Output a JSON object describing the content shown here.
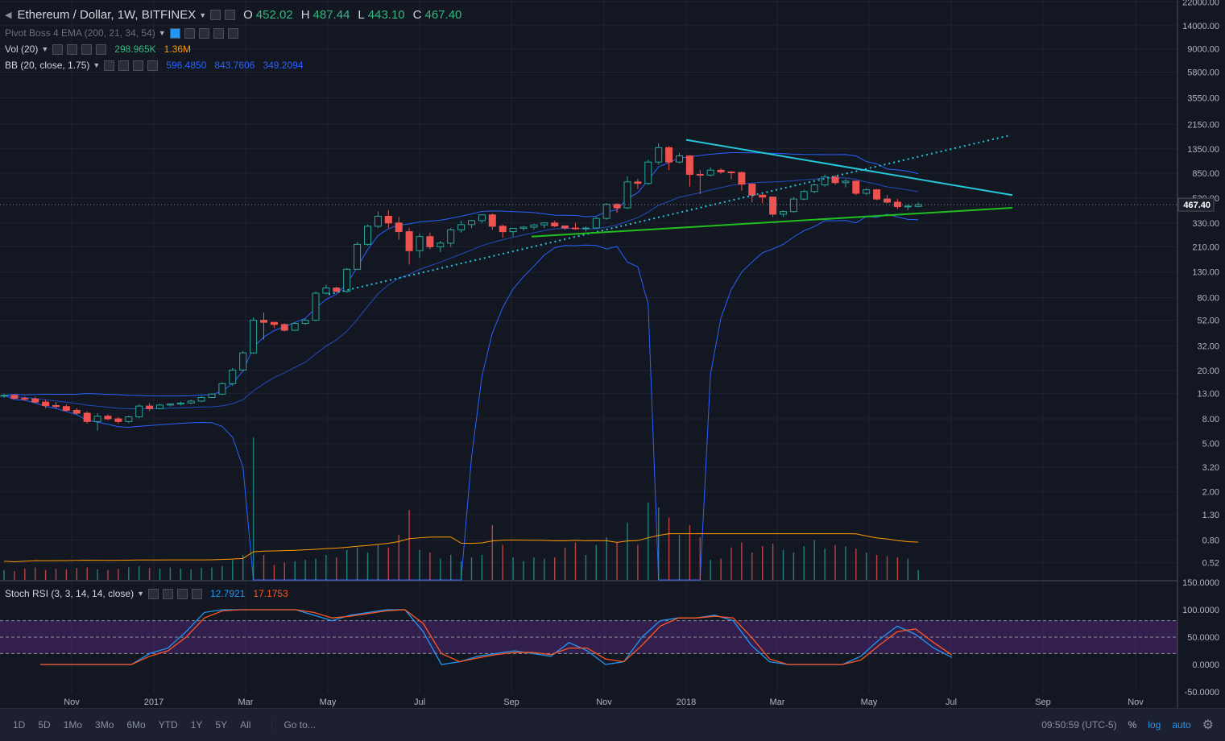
{
  "header": {
    "symbol": "Ethereum / Dollar, 1W, BITFINEX",
    "open_label": "O",
    "open": "452.02",
    "high_label": "H",
    "high": "487.44",
    "low_label": "L",
    "low": "443.10",
    "close_label": "C",
    "close": "467.40"
  },
  "indicators": {
    "pivot": {
      "label": "Pivot Boss 4 EMA (200, 21, 34, 54)"
    },
    "vol": {
      "label": "Vol (20)",
      "v1": "298.965K",
      "v2": "1.36M"
    },
    "bb": {
      "label": "BB (20, close, 1.75)",
      "basis": "596.4850",
      "upper": "843.7606",
      "lower": "349.2094"
    },
    "stoch": {
      "label": "Stoch RSI (3, 3, 14, 14, close)",
      "k": "12.7921",
      "d": "17.1753"
    }
  },
  "bottom_bar": {
    "timeframes": [
      "1D",
      "5D",
      "1Mo",
      "3Mo",
      "6Mo",
      "YTD",
      "1Y",
      "5Y",
      "All"
    ],
    "goto": "Go to...",
    "clock": "09:50:59 (UTC-5)",
    "percent": "%",
    "log": "log",
    "auto": "auto"
  },
  "colors": {
    "up": "#26a69a",
    "down": "#ef5350",
    "bb": "#2962ff",
    "vol_ma": "#ff9800",
    "trend_cyan": "#26c6da",
    "trend_green": "#1fbf1f",
    "stoch_k": "#2196f3",
    "stoch_d": "#ff5722",
    "rsi_band": "#5b2a86"
  },
  "chart_data": [
    {
      "type": "candlestick",
      "title": "Ethereum / Dollar, 1W, BITFINEX",
      "yscale": "log",
      "price_ticks": [
        22000,
        14000,
        9000,
        5800,
        3550,
        2150,
        1350,
        850,
        530,
        330,
        210,
        130,
        80,
        52,
        32,
        20,
        13,
        8,
        5,
        3.2,
        2,
        1.3,
        0.8,
        0.52
      ],
      "price_tick_labels": [
        "22000.00",
        "14000.00",
        "9000.00",
        "5800.00",
        "3550.00",
        "2150.00",
        "1350.00",
        "850.00",
        "530.00",
        "330.00",
        "210.00",
        "130.00",
        "80.00",
        "52.00",
        "32.00",
        "20.00",
        "13.00",
        "8.00",
        "5.00",
        "3.20",
        "2.00",
        "1.30",
        "0.80",
        "0.52"
      ],
      "last_price_label": "467.40",
      "time_labels": [
        "Nov",
        "2017",
        "Mar",
        "May",
        "Jul",
        "Sep",
        "Nov",
        "2018",
        "Mar",
        "May",
        "Jul",
        "Sep",
        "Nov"
      ],
      "candles": [
        [
          12.3,
          12.9,
          11.9,
          12.5
        ],
        [
          12.5,
          12.8,
          11.6,
          11.8
        ],
        [
          11.8,
          12.2,
          11.3,
          11.7
        ],
        [
          11.7,
          12.2,
          10.8,
          11.0
        ],
        [
          11.0,
          11.5,
          9.8,
          10.3
        ],
        [
          10.3,
          11.0,
          9.7,
          10.1
        ],
        [
          10.1,
          10.5,
          9.2,
          9.4
        ],
        [
          9.4,
          9.8,
          8.7,
          8.9
        ],
        [
          8.9,
          9.2,
          7.3,
          7.6
        ],
        [
          7.6,
          8.9,
          6.4,
          8.4
        ],
        [
          8.4,
          8.7,
          7.8,
          8.0
        ],
        [
          8.0,
          8.3,
          7.3,
          7.6
        ],
        [
          7.6,
          8.5,
          7.4,
          8.3
        ],
        [
          8.3,
          10.5,
          8.1,
          10.2
        ],
        [
          10.2,
          10.8,
          9.3,
          9.7
        ],
        [
          9.7,
          10.6,
          9.6,
          10.4
        ],
        [
          10.4,
          10.7,
          10.1,
          10.6
        ],
        [
          10.6,
          11.1,
          10.3,
          10.8
        ],
        [
          10.8,
          11.5,
          10.6,
          11.2
        ],
        [
          11.2,
          12.3,
          11.0,
          12.0
        ],
        [
          12.0,
          13.0,
          11.9,
          12.8
        ],
        [
          12.8,
          16.0,
          12.6,
          15.6
        ],
        [
          15.6,
          21.0,
          15.0,
          20.2
        ],
        [
          20.2,
          29.0,
          19.8,
          28.0
        ],
        [
          28.0,
          55.0,
          27.5,
          52.0
        ],
        [
          52.0,
          60.0,
          36.0,
          50.0
        ],
        [
          50.0,
          50.5,
          45.0,
          48.0
        ],
        [
          48.0,
          49.0,
          42.0,
          43.0
        ],
        [
          43.0,
          50.0,
          42.5,
          49.0
        ],
        [
          49.0,
          53.5,
          47.5,
          52.0
        ],
        [
          52.0,
          90.0,
          51.0,
          87.0
        ],
        [
          87.0,
          102.0,
          85.0,
          96.0
        ],
        [
          96.0,
          98.0,
          88.0,
          90.0
        ],
        [
          90.0,
          140.0,
          88.0,
          137.0
        ],
        [
          137.0,
          230.0,
          135.0,
          220.0
        ],
        [
          220.0,
          320.0,
          215.0,
          310.0
        ],
        [
          310.0,
          410.0,
          300.0,
          375.0
        ],
        [
          375.0,
          420.0,
          300.0,
          330.0
        ],
        [
          330.0,
          370.0,
          240.0,
          280.0
        ],
        [
          280.0,
          300.0,
          150.0,
          195.0
        ],
        [
          195.0,
          270.0,
          170.0,
          255.0
        ],
        [
          255.0,
          275.0,
          200.0,
          210.0
        ],
        [
          210.0,
          235.0,
          190.0,
          225.0
        ],
        [
          225.0,
          300.0,
          210.0,
          290.0
        ],
        [
          290.0,
          345.0,
          275.0,
          320.0
        ],
        [
          320.0,
          350.0,
          300.0,
          345.0
        ],
        [
          345.0,
          390.0,
          330.0,
          385.0
        ],
        [
          385.0,
          395.0,
          290.0,
          310.0
        ],
        [
          310.0,
          320.0,
          250.0,
          280.0
        ],
        [
          280.0,
          300.0,
          255.0,
          298.0
        ],
        [
          298.0,
          312.0,
          285.0,
          305.0
        ],
        [
          305.0,
          325.0,
          290.0,
          318.0
        ],
        [
          318.0,
          335.0,
          300.0,
          330.0
        ],
        [
          330.0,
          345.0,
          305.0,
          312.0
        ],
        [
          312.0,
          315.0,
          290.0,
          300.0
        ],
        [
          300.0,
          330.0,
          290.0,
          296.0
        ],
        [
          296.0,
          310.0,
          280.0,
          300.0
        ],
        [
          300.0,
          370.0,
          295.0,
          360.0
        ],
        [
          360.0,
          480.0,
          350.0,
          470.0
        ],
        [
          470.0,
          480.0,
          400.0,
          440.0
        ],
        [
          440.0,
          800.0,
          430.0,
          720.0
        ],
        [
          720.0,
          760.0,
          630.0,
          700.0
        ],
        [
          700.0,
          1100.0,
          680.0,
          1050.0
        ],
        [
          1050.0,
          1500.0,
          1000.0,
          1380.0
        ],
        [
          1380.0,
          1420.0,
          900.0,
          1050.0
        ],
        [
          1050.0,
          1250.0,
          1020.0,
          1180.0
        ],
        [
          1180.0,
          1200.0,
          660.0,
          830.0
        ],
        [
          830.0,
          900.0,
          570.0,
          820.0
        ],
        [
          820.0,
          950.0,
          800.0,
          900.0
        ],
        [
          900.0,
          930.0,
          840.0,
          870.0
        ],
        [
          870.0,
          880.0,
          760.0,
          860.0
        ],
        [
          860.0,
          880.0,
          610.0,
          690.0
        ],
        [
          690.0,
          700.0,
          490.0,
          560.0
        ],
        [
          560.0,
          570.0,
          480.0,
          540.0
        ],
        [
          540.0,
          545.0,
          370.0,
          390.0
        ],
        [
          390.0,
          420.0,
          370.0,
          410.0
        ],
        [
          410.0,
          540.0,
          400.0,
          520.0
        ],
        [
          520.0,
          620.0,
          510.0,
          600.0
        ],
        [
          600.0,
          700.0,
          580.0,
          680.0
        ],
        [
          680.0,
          830.0,
          660.0,
          790.0
        ],
        [
          790.0,
          820.0,
          680.0,
          710.0
        ],
        [
          710.0,
          760.0,
          650.0,
          730.0
        ],
        [
          730.0,
          740.0,
          560.0,
          580.0
        ],
        [
          580.0,
          640.0,
          560.0,
          620.0
        ],
        [
          620.0,
          630.0,
          510.0,
          520.0
        ],
        [
          520.0,
          560.0,
          480.0,
          490.0
        ],
        [
          490.0,
          520.0,
          430.0,
          450.0
        ],
        [
          450.0,
          470.0,
          420.0,
          455.0
        ],
        [
          452.02,
          487.44,
          443.1,
          467.4
        ]
      ],
      "volume": [
        0.4,
        0.35,
        0.45,
        0.5,
        0.4,
        0.45,
        0.42,
        0.48,
        0.5,
        0.42,
        0.4,
        0.45,
        0.5,
        0.55,
        0.48,
        0.45,
        0.5,
        0.45,
        0.42,
        0.48,
        0.5,
        0.55,
        0.8,
        1.0,
        5.7,
        1.0,
        0.6,
        0.7,
        0.75,
        0.8,
        0.85,
        1.0,
        0.9,
        1.2,
        1.3,
        1.1,
        1.4,
        1.3,
        1.8,
        2.8,
        1.2,
        1.1,
        0.85,
        1.0,
        0.75,
        0.9,
        1.0,
        2.2,
        1.4,
        0.9,
        0.75,
        0.9,
        0.85,
        0.9,
        1.3,
        1.5,
        1.0,
        1.4,
        1.7,
        1.5,
        2.3,
        1.4,
        3.1,
        2.9,
        2.5,
        1.8,
        2.2,
        1.7,
        0.8,
        0.85,
        1.3,
        1.5,
        1.1,
        1.35,
        1.45,
        1.2,
        1.1,
        1.35,
        1.6,
        1.25,
        1.4,
        1.35,
        1.25,
        1.1,
        1.0,
        0.95,
        0.9,
        0.85,
        0.4
      ]
    },
    {
      "type": "line",
      "title": "Stoch RSI (3, 3, 14, 14, close)",
      "ylim": [
        -50,
        150
      ],
      "tick_labels": [
        "150.0000",
        "100.0000",
        "50.0000",
        "0.0000",
        "-50.0000"
      ],
      "band": [
        20,
        80
      ],
      "series": [
        {
          "name": "K",
          "values": [
            0,
            0,
            0,
            0,
            0,
            0,
            20,
            30,
            60,
            95,
            100,
            100,
            100,
            100,
            100,
            90,
            80,
            90,
            95,
            100,
            100,
            60,
            0,
            5,
            15,
            20,
            25,
            20,
            15,
            40,
            25,
            0,
            5,
            50,
            80,
            85,
            85,
            90,
            80,
            35,
            5,
            0,
            0,
            0,
            0,
            15,
            45,
            70,
            55,
            30,
            12.79
          ]
        },
        {
          "name": "D",
          "values": [
            0,
            0,
            0,
            0,
            0,
            0,
            15,
            25,
            50,
            85,
            98,
            100,
            100,
            100,
            100,
            95,
            85,
            88,
            93,
            98,
            100,
            75,
            20,
            5,
            12,
            18,
            22,
            22,
            18,
            30,
            30,
            10,
            5,
            35,
            70,
            85,
            85,
            88,
            85,
            50,
            10,
            0,
            0,
            0,
            0,
            8,
            35,
            60,
            65,
            40,
            17.18
          ]
        }
      ]
    }
  ]
}
